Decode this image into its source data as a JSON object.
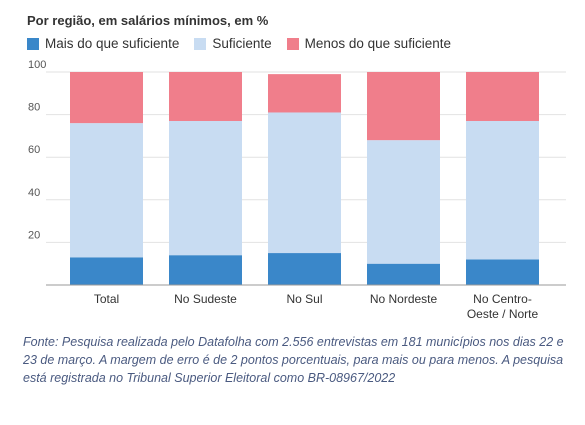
{
  "chart_data": {
    "type": "bar",
    "stacked": true,
    "title": "Por região, em salários mínimos, em %",
    "categories": [
      "Total",
      "No Sudeste",
      "No Sul",
      "No Nordeste",
      "No Centro-\nOeste / Norte"
    ],
    "series": [
      {
        "name": "Mais do que suficiente",
        "color": "#3a87c9",
        "values": [
          13,
          14,
          15,
          10,
          12
        ]
      },
      {
        "name": "Suficiente",
        "color": "#c8dcf2",
        "values": [
          63,
          63,
          66,
          58,
          65
        ]
      },
      {
        "name": "Menos do que suficiente",
        "color": "#f07e8b",
        "values": [
          24,
          23,
          18,
          32,
          23
        ]
      }
    ],
    "ylim": [
      0,
      100
    ],
    "yticks": [
      "20",
      "40",
      "60",
      "80",
      "100"
    ],
    "grid": true,
    "legend_position": "top-left"
  },
  "footer": "Fonte: Pesquisa realizada pelo Datafolha com 2.556 entrevistas em 181 municípios nos dias 22 e 23 de março. A margem de erro é de 2 pontos porcentuais, para mais ou para menos. A pesquisa está registrada no Tribunal Superior Eleitoral como BR-08967/2022"
}
